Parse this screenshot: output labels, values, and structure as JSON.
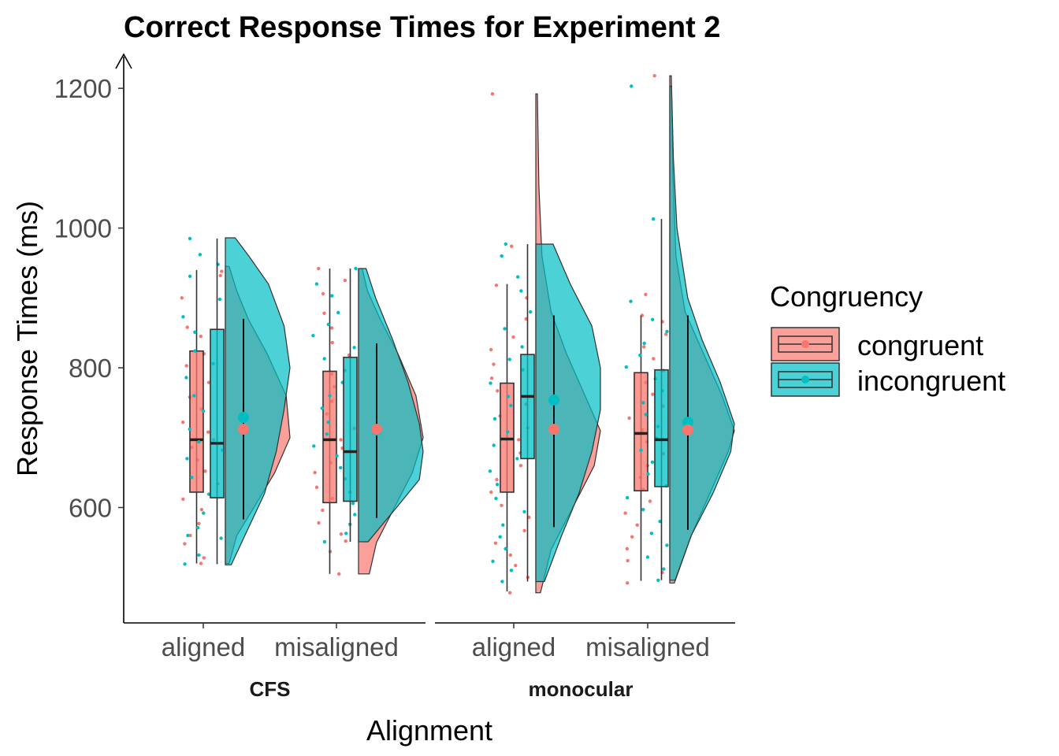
{
  "chart_data": {
    "type": "raincloud",
    "title": "Correct Response Times for Experiment 2",
    "xlabel": "Alignment",
    "ylabel": "Response Times (ms)",
    "ylim": [
      445,
      1220
    ],
    "yticks": [
      600,
      800,
      1000,
      1200
    ],
    "facets": [
      "CFS",
      "monocular"
    ],
    "categories": [
      "aligned",
      "misaligned"
    ],
    "legend": {
      "title": "Congruency",
      "position": "right",
      "entries": [
        {
          "name": "congruent",
          "color": "#F8766D"
        },
        {
          "name": "incongruent",
          "color": "#00BFC4"
        }
      ]
    },
    "groups": [
      {
        "facet": "CFS",
        "category": "aligned",
        "congruent": {
          "box": {
            "lower_whisker": 520,
            "q1": 622,
            "median": 697,
            "q3": 824,
            "upper_whisker": 940
          },
          "mean": 712,
          "ci": [
            583,
            870
          ],
          "density": [
            [
              520,
              0.02
            ],
            [
              560,
              0.06
            ],
            [
              600,
              0.15
            ],
            [
              650,
              0.26
            ],
            [
              700,
              0.34
            ],
            [
              760,
              0.32
            ],
            [
              820,
              0.22
            ],
            [
              870,
              0.12
            ],
            [
              910,
              0.06
            ],
            [
              945,
              0.02
            ]
          ],
          "points": [
            520,
            528,
            548,
            560,
            577,
            597,
            612,
            634,
            652,
            668,
            686,
            697,
            708,
            722,
            741,
            758,
            779,
            803,
            820,
            845,
            858,
            900,
            932,
            938
          ]
        },
        "incongruent": {
          "box": {
            "lower_whisker": 519,
            "q1": 614,
            "median": 692,
            "q3": 855,
            "upper_whisker": 985
          },
          "mean": 729,
          "ci": [
            583,
            870
          ],
          "density": [
            [
              518,
              0.03
            ],
            [
              560,
              0.1
            ],
            [
              620,
              0.2
            ],
            [
              680,
              0.26
            ],
            [
              740,
              0.3
            ],
            [
              800,
              0.33
            ],
            [
              860,
              0.3
            ],
            [
              920,
              0.22
            ],
            [
              960,
              0.12
            ],
            [
              986,
              0.05
            ]
          ],
          "points": [
            519,
            532,
            556,
            560,
            571,
            592,
            619,
            643,
            670,
            682,
            694,
            712,
            738,
            760,
            786,
            806,
            824,
            851,
            873,
            898,
            931,
            948,
            962,
            985
          ]
        }
      },
      {
        "facet": "CFS",
        "category": "misaligned",
        "congruent": {
          "box": {
            "lower_whisker": 505,
            "q1": 607,
            "median": 697,
            "q3": 795,
            "upper_whisker": 942
          },
          "mean": 712,
          "ci": [
            585,
            835
          ],
          "density": [
            [
              505,
              0.06
            ],
            [
              550,
              0.1
            ],
            [
              600,
              0.2
            ],
            [
              650,
              0.3
            ],
            [
              700,
              0.36
            ],
            [
              760,
              0.32
            ],
            [
              820,
              0.22
            ],
            [
              870,
              0.12
            ],
            [
              910,
              0.05
            ],
            [
              942,
              0.02
            ]
          ],
          "points": [
            505,
            537,
            552,
            562,
            578,
            596,
            613,
            629,
            650,
            664,
            685,
            697,
            713,
            734,
            752,
            773,
            791,
            818,
            836,
            857,
            878,
            906,
            925,
            942
          ]
        },
        "incongruent": {
          "box": {
            "lower_whisker": 551,
            "q1": 609,
            "median": 680,
            "q3": 815,
            "upper_whisker": 942
          },
          "mean": 711,
          "ci": [
            585,
            835
          ],
          "density": [
            [
              551,
              0.05
            ],
            [
              600,
              0.2
            ],
            [
              640,
              0.32
            ],
            [
              680,
              0.34
            ],
            [
              720,
              0.32
            ],
            [
              780,
              0.26
            ],
            [
              840,
              0.18
            ],
            [
              900,
              0.09
            ],
            [
              942,
              0.04
            ]
          ],
          "points": [
            551,
            563,
            576,
            590,
            606,
            622,
            641,
            657,
            674,
            688,
            705,
            722,
            742,
            760,
            779,
            796,
            813,
            829,
            846,
            862,
            879,
            903,
            920,
            942
          ]
        }
      },
      {
        "facet": "monocular",
        "category": "aligned",
        "congruent": {
          "box": {
            "lower_whisker": 480,
            "q1": 622,
            "median": 698,
            "q3": 778,
            "upper_whisker": 920
          },
          "mean": 712,
          "ci": [
            572,
            875
          ],
          "density": [
            [
              478,
              0.03
            ],
            [
              540,
              0.1
            ],
            [
              600,
              0.24
            ],
            [
              660,
              0.38
            ],
            [
              710,
              0.42
            ],
            [
              760,
              0.32
            ],
            [
              820,
              0.2
            ],
            [
              880,
              0.1
            ],
            [
              960,
              0.04
            ],
            [
              1060,
              0.02
            ],
            [
              1192,
              0.01
            ]
          ],
          "points": [
            478,
            500,
            517,
            532,
            549,
            567,
            586,
            603,
            622,
            640,
            660,
            678,
            697,
            714,
            731,
            748,
            767,
            785,
            805,
            826,
            844,
            870,
            900,
            918,
            974,
            1192
          ]
        },
        "incongruent": {
          "box": {
            "lower_whisker": 494,
            "q1": 670,
            "median": 759,
            "q3": 819,
            "upper_whisker": 977
          },
          "mean": 754,
          "ci": [
            572,
            875
          ],
          "density": [
            [
              494,
              0.04
            ],
            [
              560,
              0.12
            ],
            [
              620,
              0.2
            ],
            [
              680,
              0.26
            ],
            [
              740,
              0.3
            ],
            [
              800,
              0.3
            ],
            [
              860,
              0.26
            ],
            [
              920,
              0.16
            ],
            [
              977,
              0.08
            ]
          ],
          "points": [
            494,
            510,
            523,
            541,
            558,
            575,
            594,
            613,
            633,
            652,
            670,
            689,
            708,
            727,
            746,
            759,
            778,
            797,
            812,
            830,
            856,
            880,
            910,
            930,
            960,
            977
          ]
        }
      },
      {
        "facet": "monocular",
        "category": "misaligned",
        "congruent": {
          "box": {
            "lower_whisker": 495,
            "q1": 624,
            "median": 706,
            "q3": 793,
            "upper_whisker": 875
          },
          "mean": 711,
          "ci": [
            568,
            875
          ],
          "density": [
            [
              492,
              0.03
            ],
            [
              560,
              0.14
            ],
            [
              620,
              0.26
            ],
            [
              680,
              0.38
            ],
            [
              710,
              0.42
            ],
            [
              760,
              0.34
            ],
            [
              820,
              0.22
            ],
            [
              880,
              0.1
            ],
            [
              960,
              0.04
            ],
            [
              1080,
              0.02
            ],
            [
              1218,
              0.01
            ]
          ],
          "points": [
            492,
            507,
            524,
            541,
            558,
            575,
            592,
            609,
            626,
            643,
            660,
            677,
            694,
            711,
            728,
            745,
            762,
            779,
            796,
            813,
            830,
            848,
            866,
            875,
            905,
            1218
          ]
        },
        "incongruent": {
          "box": {
            "lower_whisker": 496,
            "q1": 630,
            "median": 697,
            "q3": 797,
            "upper_whisker": 1013
          },
          "mean": 722,
          "ci": [
            568,
            875
          ],
          "density": [
            [
              496,
              0.03
            ],
            [
              560,
              0.12
            ],
            [
              620,
              0.24
            ],
            [
              680,
              0.34
            ],
            [
              720,
              0.36
            ],
            [
              780,
              0.28
            ],
            [
              840,
              0.18
            ],
            [
              900,
              0.1
            ],
            [
              1000,
              0.04
            ],
            [
              1100,
              0.02
            ],
            [
              1203,
              0.01
            ]
          ],
          "points": [
            496,
            512,
            529,
            546,
            563,
            580,
            597,
            614,
            631,
            648,
            665,
            682,
            699,
            716,
            733,
            750,
            767,
            784,
            801,
            818,
            835,
            852,
            869,
            895,
            1013,
            1203
          ]
        }
      }
    ]
  }
}
